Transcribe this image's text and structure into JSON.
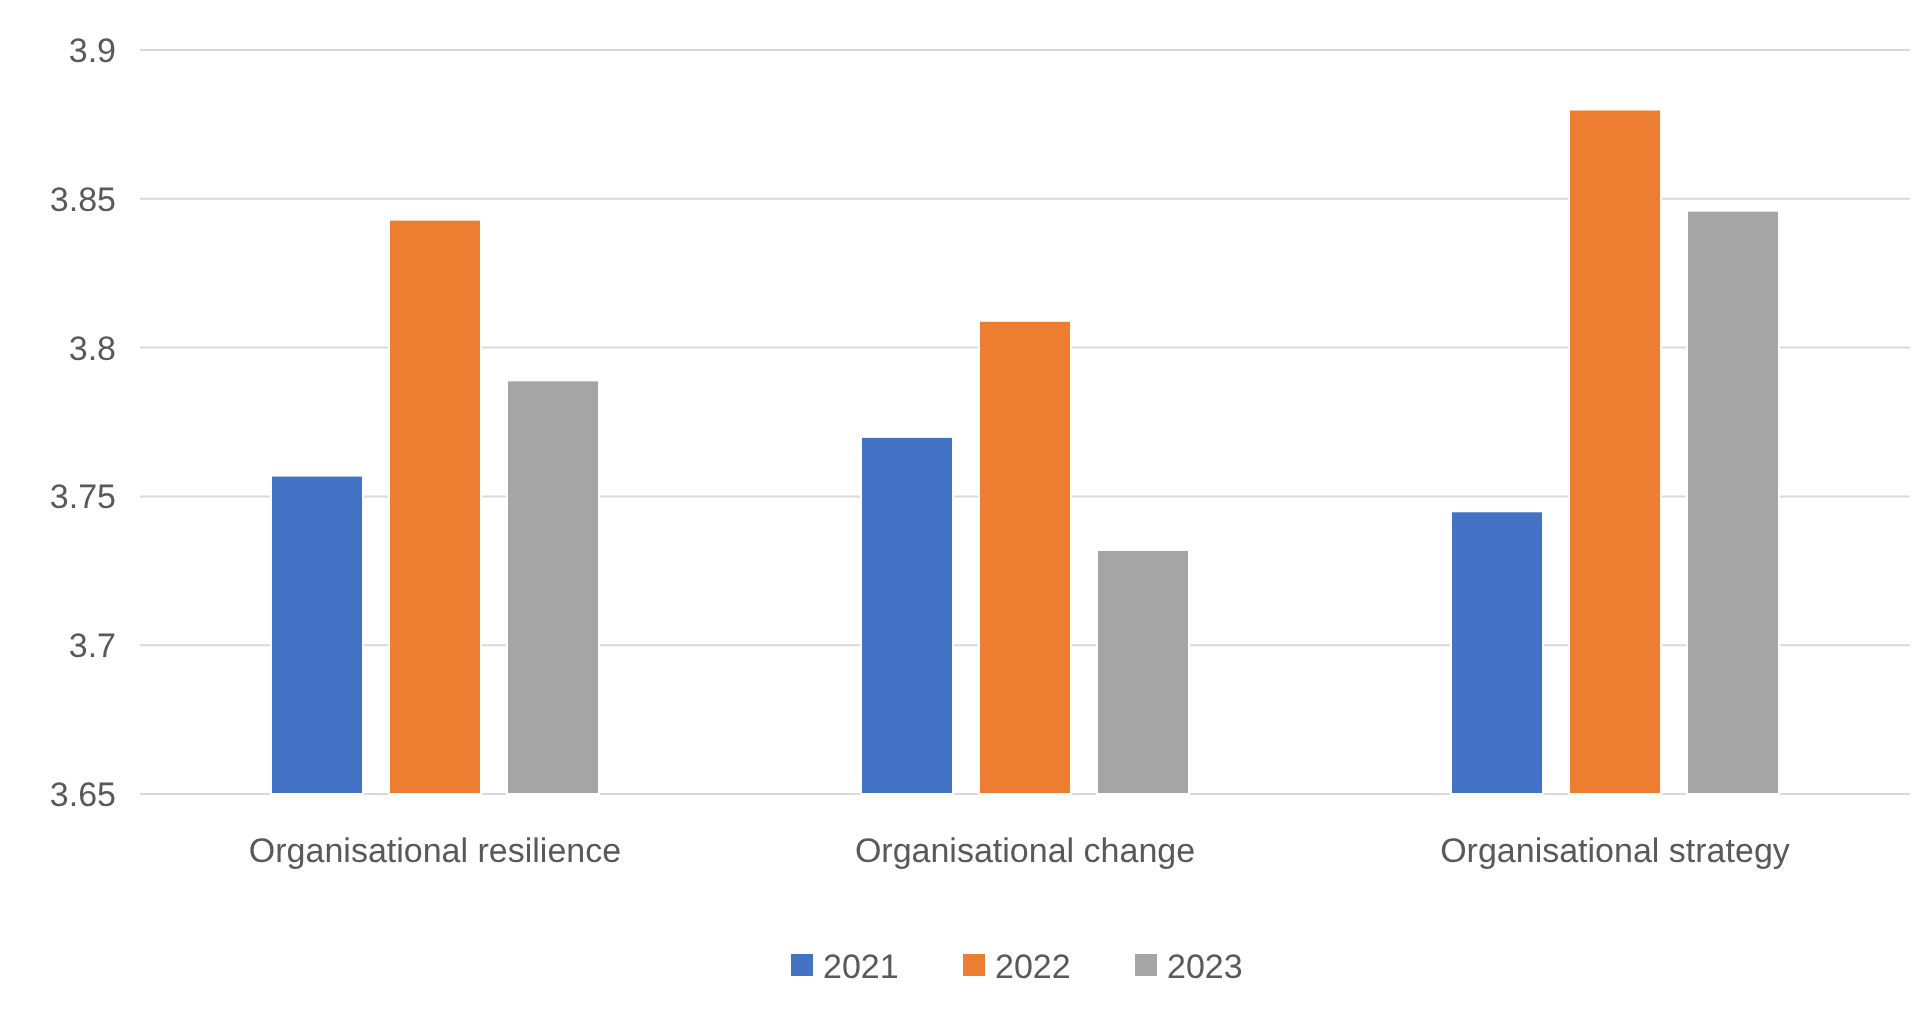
{
  "chart_data": {
    "type": "bar",
    "categories": [
      "Organisational resilience",
      "Organisational change",
      "Organisational strategy"
    ],
    "series": [
      {
        "name": "2021",
        "color": "#4472c4",
        "values": [
          3.757,
          3.77,
          3.745
        ]
      },
      {
        "name": "2022",
        "color": "#ed7d31",
        "values": [
          3.843,
          3.809,
          3.88
        ]
      },
      {
        "name": "2023",
        "color": "#a5a5a5",
        "values": [
          3.789,
          3.732,
          3.846
        ]
      }
    ],
    "ylim": [
      3.65,
      3.9
    ],
    "yticks": [
      3.65,
      3.7,
      3.75,
      3.8,
      3.85,
      3.9
    ],
    "grid": "y",
    "legend": "bottom"
  }
}
